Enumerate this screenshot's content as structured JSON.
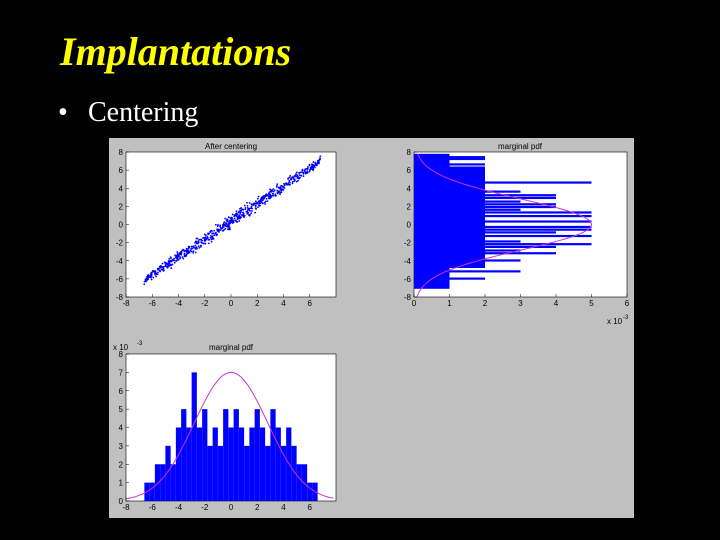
{
  "slide": {
    "title": "Implantations",
    "bullet": "Centering"
  },
  "colors": {
    "background": "#000000",
    "title": "#ffff00",
    "text": "#ffffff",
    "figure_bg": "#c0c0c0",
    "data_blue": "#0000ff",
    "curve_magenta": "#cc33cc"
  },
  "chart_data": [
    {
      "id": "scatter",
      "type": "scatter",
      "title": "After centering",
      "xlim": [
        -8,
        8
      ],
      "ylim": [
        -8,
        8
      ],
      "xticks": [
        "-8",
        "-6",
        "-4",
        "-2",
        "0",
        "2",
        "4",
        "6"
      ],
      "yticks": [
        "8",
        "6",
        "4",
        "2",
        "0",
        "-2",
        "-4",
        "-6",
        "-8"
      ],
      "trend": {
        "x_start": -6.5,
        "y_start": -6.0,
        "x_end": 6.8,
        "y_end": 7.0,
        "spread": 1.1
      }
    },
    {
      "id": "marginal-y",
      "type": "bar",
      "orientation": "horizontal",
      "title": "marginal pdf",
      "xlim": [
        0,
        6
      ],
      "ylim": [
        -8,
        8
      ],
      "xticks": [
        "0",
        "1",
        "2",
        "3",
        "4",
        "5",
        "6"
      ],
      "yticks": [
        "8",
        "6",
        "4",
        "2",
        "0",
        "-2",
        "-4",
        "-6",
        "-8"
      ],
      "xscale_label": "x 10",
      "xscale_exp": "-3",
      "y": [
        7.6,
        7.4,
        7.2,
        7.0,
        6.6,
        6.0,
        5.2,
        4.6,
        4.0,
        3.6,
        3.2,
        2.9,
        2.5,
        2.2,
        1.9,
        1.6,
        1.3,
        0.9,
        0.6,
        0.3,
        0.0,
        -0.3,
        -0.6,
        -0.9,
        -1.3,
        -1.6,
        -1.9,
        -2.2,
        -2.5,
        -2.9,
        -3.2,
        -3.6,
        -4.0,
        -4.6,
        -5.2,
        -6.0,
        -6.6,
        -7.0
      ],
      "values": [
        1,
        2,
        2,
        1,
        2,
        2,
        1,
        5,
        2,
        3,
        4,
        4,
        3,
        4,
        4,
        3,
        5,
        5,
        2,
        5,
        1,
        5,
        5,
        4,
        5,
        2,
        3,
        5,
        4,
        3,
        4,
        2,
        3,
        2,
        3,
        2,
        1,
        1
      ],
      "curve": {
        "type": "gaussian",
        "peak": 5.0,
        "mean": 0.0,
        "sd": 2.8
      }
    },
    {
      "id": "marginal-x",
      "type": "bar",
      "title": "marginal pdf",
      "xlim": [
        -8,
        8
      ],
      "ylim": [
        0,
        8
      ],
      "xticks": [
        "-8",
        "-6",
        "-4",
        "-2",
        "0",
        "2",
        "4",
        "6"
      ],
      "yticks": [
        "0",
        "1",
        "2",
        "3",
        "4",
        "5",
        "6",
        "7",
        "8"
      ],
      "yscale_label": "x 10",
      "yscale_exp": "-3",
      "x": [
        -6.4,
        -6.0,
        -5.6,
        -5.2,
        -4.8,
        -4.4,
        -4.0,
        -3.6,
        -3.2,
        -2.8,
        -2.4,
        -2.0,
        -1.6,
        -1.2,
        -0.8,
        -0.4,
        0.0,
        0.4,
        0.8,
        1.2,
        1.6,
        2.0,
        2.4,
        2.8,
        3.2,
        3.6,
        4.0,
        4.4,
        4.8,
        5.2,
        5.6,
        6.0,
        6.4
      ],
      "values": [
        1,
        1,
        2,
        2,
        3,
        2,
        4,
        5,
        4,
        7,
        4,
        5,
        3,
        4,
        3,
        5,
        4,
        5,
        4,
        3,
        4,
        5,
        4,
        3,
        5,
        4,
        3,
        4,
        3,
        2,
        2,
        1,
        1
      ],
      "curve": {
        "type": "gaussian",
        "peak": 7.0,
        "mean": 0.0,
        "sd": 2.8
      }
    }
  ]
}
